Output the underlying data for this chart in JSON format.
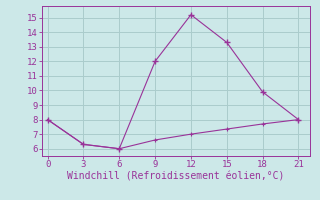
{
  "xlabel": "Windchill (Refroidissement éolien,°C)",
  "line1_x": [
    0,
    3,
    6,
    9,
    12,
    15,
    18,
    21
  ],
  "line1_y": [
    8,
    6.3,
    6.0,
    12.0,
    15.2,
    13.3,
    9.9,
    8.0
  ],
  "line2_x": [
    0,
    3,
    6,
    9,
    12,
    15,
    18,
    21
  ],
  "line2_y": [
    8.0,
    6.3,
    6.0,
    6.6,
    7.0,
    7.35,
    7.7,
    8.0
  ],
  "line_color": "#993399",
  "bg_color": "#cce8e8",
  "grid_color": "#aacccc",
  "text_color": "#993399",
  "xlim": [
    -0.5,
    22
  ],
  "ylim": [
    5.5,
    15.8
  ],
  "xticks": [
    0,
    3,
    6,
    9,
    12,
    15,
    18,
    21
  ],
  "yticks": [
    6,
    7,
    8,
    9,
    10,
    11,
    12,
    13,
    14,
    15
  ]
}
